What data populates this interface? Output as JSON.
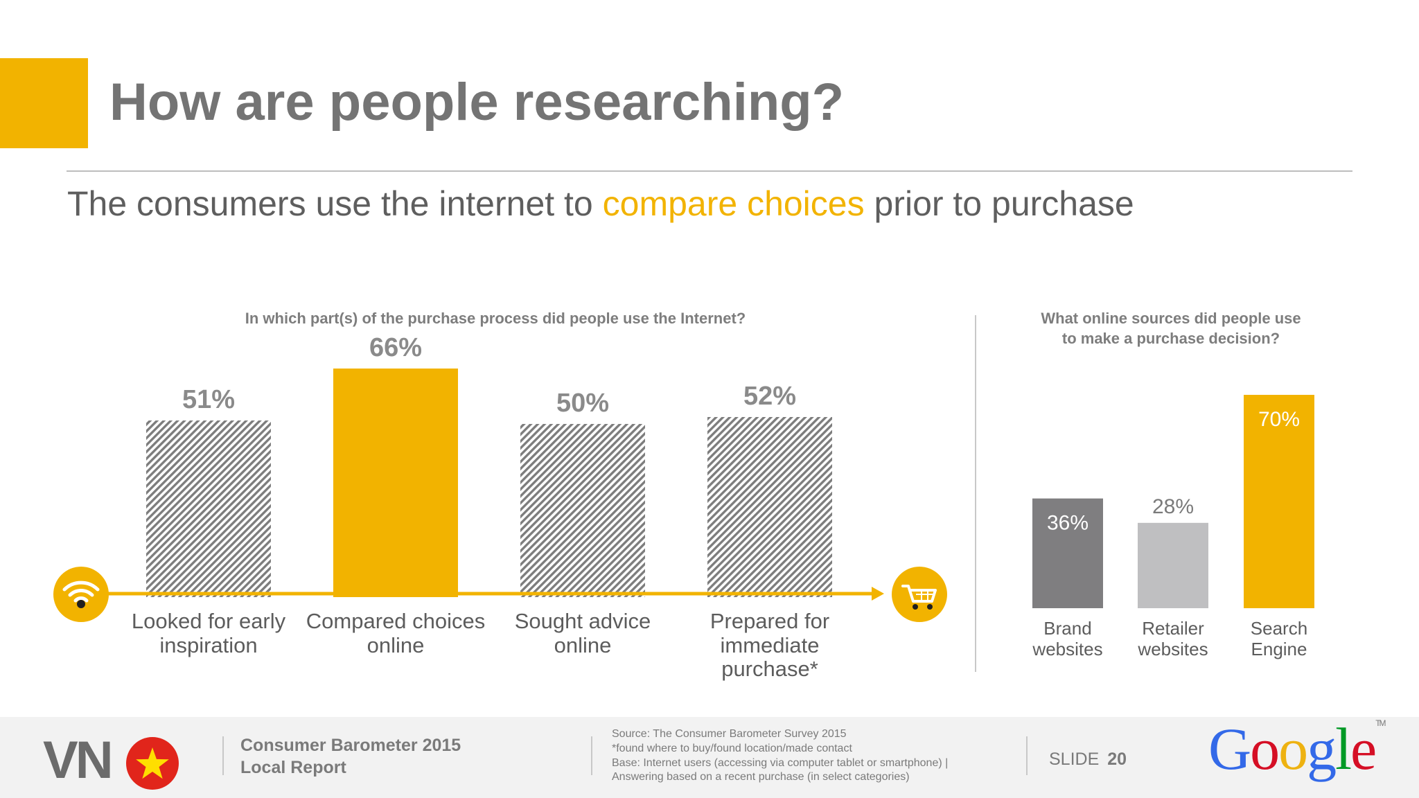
{
  "header": {
    "title": "How are people researching?",
    "subtitle_pre": "The consumers use the internet to ",
    "subtitle_highlight": "compare choices",
    "subtitle_post": " prior to purchase"
  },
  "colors": {
    "accent": "#f2b300",
    "hatch": "#7d7d7d",
    "dark_grey": "#7f7e80",
    "light_grey": "#bfbfc1"
  },
  "chart_data": [
    {
      "type": "bar",
      "title": "In which part(s) of the purchase process did people use the Internet?",
      "categories": [
        "Looked for early\ninspiration",
        "Compared choices\nonline",
        "Sought advice\nonline",
        "Prepared for\nimmediate\npurchase*"
      ],
      "values": [
        51,
        66,
        50,
        52
      ],
      "labels": [
        "51%",
        "66%",
        "50%",
        "52%"
      ],
      "highlight_index": 1,
      "ylim": [
        0,
        100
      ],
      "icons": [
        "wifi-icon",
        "shopping-cart-icon"
      ]
    },
    {
      "type": "bar",
      "title": "What online sources did people use\nto make a purchase decision?",
      "categories": [
        "Brand\nwebsites",
        "Retailer\nwebsites",
        "Search\nEngine"
      ],
      "values": [
        36,
        28,
        70
      ],
      "labels": [
        "36%",
        "28%",
        "70%"
      ],
      "ylim": [
        0,
        100
      ]
    }
  ],
  "footer": {
    "country": "VN",
    "report_line1": "Consumer Barometer 2015",
    "report_line2": "Local Report",
    "source_lines": [
      "Source: The Consumer Barometer Survey 2015",
      "*found where to buy/found location/made contact",
      "Base: Internet users (accessing via computer  tablet or smartphone) |",
      "Answering based on a recent purchase (in select categories)"
    ],
    "slide_label": "SLIDE",
    "slide_number": "20",
    "logo_text": "Google",
    "logo_tm": "TM"
  }
}
